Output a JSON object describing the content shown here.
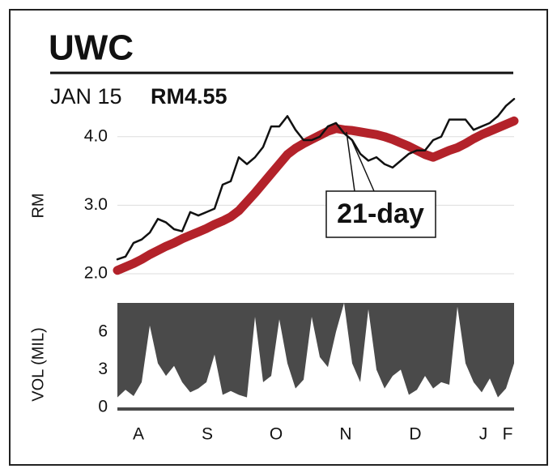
{
  "chart_data": [
    {
      "type": "line",
      "title": "UWC",
      "subtitle": "JAN 15",
      "price_label": "RM4.55",
      "ylabel": "RM",
      "annotation": "21-day",
      "ylim": [
        2.0,
        4.6
      ],
      "yticks": [
        {
          "value": 2,
          "label": "2.0"
        },
        {
          "value": 3,
          "label": "3.0"
        },
        {
          "value": 4,
          "label": "4.0"
        }
      ],
      "grid": true,
      "xlim": [
        0,
        49
      ],
      "series": [
        {
          "color": "#111111",
          "values": [
            2.21,
            2.25,
            2.45,
            2.5,
            2.6,
            2.8,
            2.75,
            2.65,
            2.62,
            2.9,
            2.85,
            2.9,
            2.95,
            3.3,
            3.35,
            3.7,
            3.6,
            3.7,
            3.85,
            4.15,
            4.15,
            4.3,
            4.1,
            3.95,
            3.95,
            4.0,
            4.15,
            4.2,
            4.05,
            3.95,
            3.75,
            3.65,
            3.7,
            3.6,
            3.55,
            3.65,
            3.75,
            3.8,
            3.8,
            3.95,
            4.0,
            4.25,
            4.25,
            4.25,
            4.1,
            4.15,
            4.2,
            4.3,
            4.45,
            4.55
          ]
        },
        {
          "color": "#b3222a",
          "values": [
            2.05,
            2.1,
            2.15,
            2.21,
            2.28,
            2.34,
            2.4,
            2.45,
            2.51,
            2.56,
            2.61,
            2.66,
            2.72,
            2.77,
            2.83,
            2.92,
            3.05,
            3.18,
            3.32,
            3.46,
            3.6,
            3.74,
            3.83,
            3.9,
            3.96,
            4.02,
            4.08,
            4.12,
            4.1,
            4.09,
            4.07,
            4.05,
            4.03,
            4.0,
            3.96,
            3.91,
            3.86,
            3.8,
            3.74,
            3.7,
            3.75,
            3.8,
            3.84,
            3.9,
            3.97,
            4.03,
            4.08,
            4.13,
            4.18,
            4.23
          ]
        }
      ]
    },
    {
      "type": "area",
      "ylabel": "VOL (MIL)",
      "ylim": [
        0,
        8.3
      ],
      "yticks": [
        0,
        3,
        6
      ],
      "xlim": [
        0,
        49
      ],
      "xticks": [
        {
          "value": 2.6,
          "label": "A"
        },
        {
          "value": 11.1,
          "label": "S"
        },
        {
          "value": 19.6,
          "label": "O"
        },
        {
          "value": 28.2,
          "label": "N"
        },
        {
          "value": 36.8,
          "label": "D"
        },
        {
          "value": 45.2,
          "label": "J"
        },
        {
          "value": 48.2,
          "label": "F"
        }
      ],
      "series": [
        {
          "color": "#ffffff",
          "values": [
            0.8,
            1.4,
            0.9,
            2.0,
            6.5,
            3.5,
            2.5,
            3.3,
            2.0,
            1.2,
            1.5,
            2.0,
            4.2,
            1.0,
            1.3,
            1.0,
            0.8,
            7.2,
            2.0,
            2.5,
            7.0,
            3.5,
            1.5,
            2.2,
            7.2,
            4.0,
            3.2,
            6.0,
            8.3,
            3.5,
            2.0,
            7.8,
            3.0,
            1.5,
            2.5,
            3.0,
            1.0,
            1.4,
            2.5,
            1.5,
            2.0,
            1.8,
            8.0,
            3.5,
            2.0,
            1.2,
            2.3,
            0.8,
            1.5,
            3.5
          ]
        }
      ]
    }
  ]
}
